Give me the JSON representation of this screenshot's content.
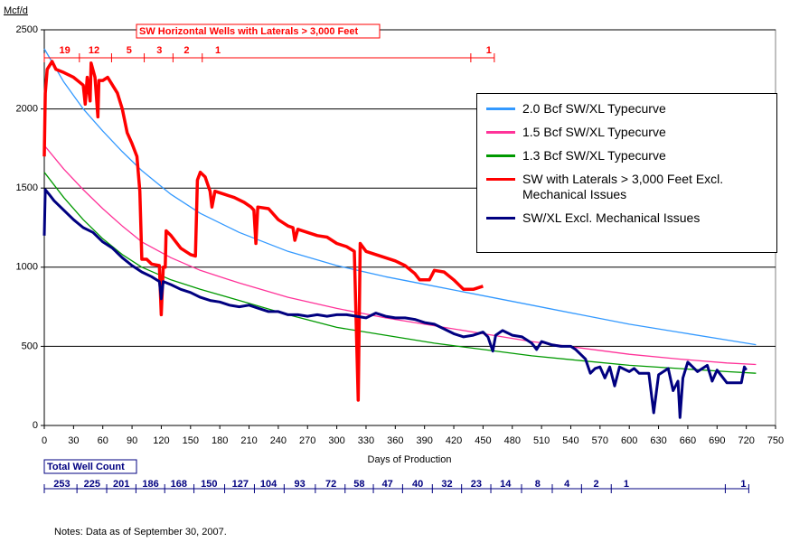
{
  "chart_data": {
    "type": "line",
    "y_label": "Mcf/d",
    "x_label": "Days of Production",
    "note": "Notes:  Data as of September 30, 2007.",
    "xlim": [
      0,
      750
    ],
    "xticks": [
      0,
      30,
      60,
      90,
      120,
      150,
      180,
      210,
      240,
      270,
      300,
      330,
      360,
      390,
      420,
      450,
      480,
      510,
      540,
      570,
      600,
      630,
      660,
      690,
      720,
      750
    ],
    "ylim": [
      0,
      2500
    ],
    "yticks": [
      0,
      500,
      1000,
      1500,
      2000,
      2500
    ],
    "grid": true,
    "series": [
      {
        "name": "2.0 Bcf SW/XL Typecurve",
        "color": "#3399ff",
        "width": 1.3,
        "x": [
          0,
          20,
          40,
          60,
          80,
          100,
          130,
          160,
          200,
          250,
          300,
          350,
          400,
          450,
          500,
          550,
          600,
          650,
          700,
          730
        ],
        "values": [
          2380,
          2170,
          2000,
          1860,
          1730,
          1610,
          1460,
          1340,
          1220,
          1100,
          1010,
          940,
          880,
          820,
          760,
          700,
          640,
          590,
          540,
          510
        ]
      },
      {
        "name": "1.5 Bcf SW/XL Typecurve",
        "color": "#ff3399",
        "width": 1.3,
        "x": [
          0,
          20,
          40,
          60,
          80,
          100,
          130,
          160,
          200,
          250,
          300,
          350,
          400,
          450,
          500,
          550,
          600,
          650,
          700,
          730
        ],
        "values": [
          1770,
          1620,
          1490,
          1370,
          1260,
          1160,
          1060,
          980,
          900,
          810,
          740,
          680,
          630,
          580,
          530,
          490,
          450,
          420,
          395,
          385
        ]
      },
      {
        "name": "1.3 Bcf SW/XL Typecurve",
        "color": "#009900",
        "width": 1.3,
        "x": [
          0,
          20,
          40,
          60,
          80,
          100,
          130,
          160,
          200,
          250,
          300,
          350,
          400,
          450,
          500,
          550,
          600,
          650,
          700,
          730
        ],
        "values": [
          1600,
          1440,
          1300,
          1180,
          1080,
          1000,
          920,
          860,
          790,
          700,
          620,
          570,
          520,
          480,
          440,
          410,
          380,
          360,
          340,
          330
        ]
      },
      {
        "name": "SW with Laterals > 3,000 Feet Excl. Mechanical Issues",
        "color": "#ff0000",
        "width": 3.5,
        "x": [
          0,
          1,
          3,
          8,
          12,
          20,
          30,
          40,
          42,
          44,
          47,
          48,
          52,
          55,
          56,
          60,
          65,
          70,
          75,
          80,
          85,
          90,
          95,
          98,
          100,
          105,
          110,
          118,
          120,
          122,
          124,
          125,
          130,
          135,
          140,
          150,
          155,
          157,
          160,
          165,
          170,
          172,
          175,
          185,
          195,
          205,
          212,
          215,
          217,
          219,
          230,
          240,
          250,
          255,
          257,
          260,
          270,
          280,
          290,
          300,
          310,
          318,
          322,
          324,
          330,
          340,
          350,
          360,
          370,
          380,
          385,
          395,
          400,
          410,
          420,
          430,
          440,
          450
        ],
        "values": [
          1700,
          2100,
          2250,
          2300,
          2250,
          2230,
          2200,
          2150,
          2030,
          2200,
          2050,
          2290,
          2200,
          1950,
          2180,
          2180,
          2200,
          2150,
          2100,
          2000,
          1850,
          1780,
          1700,
          1480,
          1050,
          1050,
          1020,
          1010,
          700,
          1000,
          1000,
          1230,
          1200,
          1160,
          1120,
          1080,
          1070,
          1550,
          1600,
          1570,
          1480,
          1380,
          1480,
          1460,
          1440,
          1410,
          1380,
          1360,
          1150,
          1380,
          1370,
          1300,
          1260,
          1250,
          1170,
          1240,
          1220,
          1200,
          1190,
          1150,
          1130,
          1100,
          160,
          1150,
          1100,
          1080,
          1060,
          1040,
          1010,
          960,
          920,
          920,
          980,
          970,
          920,
          860,
          860,
          880
        ]
      },
      {
        "name": "SW/XL Excl. Mechanical Issues",
        "color": "#000080",
        "width": 3,
        "x": [
          0,
          1,
          5,
          10,
          20,
          30,
          40,
          50,
          60,
          70,
          80,
          90,
          100,
          110,
          118,
          120,
          122,
          130,
          140,
          150,
          160,
          170,
          180,
          190,
          200,
          210,
          220,
          230,
          240,
          250,
          260,
          270,
          280,
          290,
          300,
          310,
          320,
          330,
          340,
          350,
          360,
          370,
          380,
          390,
          400,
          410,
          420,
          430,
          440,
          450,
          455,
          460,
          463,
          470,
          480,
          490,
          500,
          505,
          510,
          520,
          530,
          540,
          545,
          550,
          555,
          560,
          565,
          570,
          575,
          580,
          585,
          590,
          600,
          605,
          610,
          620,
          625,
          630,
          640,
          645,
          650,
          652,
          655,
          660,
          670,
          680,
          685,
          690,
          700,
          710,
          715,
          718,
          720
        ],
        "values": [
          1200,
          1490,
          1460,
          1420,
          1360,
          1300,
          1250,
          1220,
          1160,
          1120,
          1060,
          1010,
          970,
          940,
          910,
          800,
          910,
          890,
          860,
          840,
          810,
          790,
          780,
          760,
          750,
          760,
          740,
          720,
          720,
          700,
          700,
          690,
          700,
          690,
          700,
          700,
          690,
          680,
          710,
          690,
          680,
          680,
          670,
          650,
          640,
          610,
          580,
          560,
          570,
          590,
          560,
          470,
          570,
          600,
          570,
          560,
          520,
          480,
          530,
          510,
          500,
          500,
          480,
          450,
          420,
          330,
          360,
          370,
          300,
          370,
          250,
          370,
          340,
          360,
          330,
          330,
          80,
          320,
          360,
          220,
          280,
          50,
          300,
          400,
          340,
          380,
          280,
          350,
          270,
          270,
          270,
          370,
          350
        ]
      }
    ],
    "top_counts": {
      "title": "SW Horizontal Wells with Laterals > 3,000 Feet",
      "color": "#ff0000",
      "x": [
        21,
        51,
        87,
        118,
        146,
        178,
        456
      ],
      "values": [
        19,
        12,
        5,
        3,
        2,
        1,
        1
      ]
    },
    "bottom_counts": {
      "title": "Total Well Count",
      "color": "#000080",
      "x": [
        18,
        49,
        79,
        109,
        138,
        169,
        201,
        230,
        262,
        294,
        323,
        352,
        383,
        413,
        443,
        473,
        506,
        536,
        566,
        597,
        717
      ],
      "values": [
        253,
        225,
        201,
        186,
        168,
        150,
        127,
        104,
        93,
        72,
        58,
        47,
        40,
        32,
        23,
        14,
        8,
        4,
        2,
        1,
        1
      ]
    }
  }
}
